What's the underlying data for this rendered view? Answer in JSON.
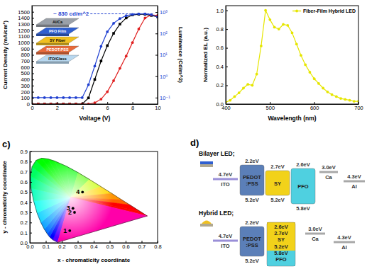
{
  "chart_data": [
    {
      "type": "line",
      "x_label": "Voltage (V)",
      "y_label": "Current Density (mA/cm²)",
      "y2_label": "Luminance (Cd/m^2)",
      "x": [
        0,
        0.5,
        1,
        1.5,
        2,
        2.5,
        3,
        3.5,
        4,
        4.5,
        5,
        5.5,
        6,
        6.5,
        7,
        7.5,
        8,
        8.5,
        9,
        9.5,
        10
      ],
      "xlim": [
        0,
        10
      ],
      "xticks": [
        0,
        2,
        4,
        6,
        8,
        10
      ],
      "ylim": [
        0,
        1600
      ],
      "yticks": [
        0,
        100,
        200,
        300,
        400,
        500,
        600,
        700,
        800,
        900,
        1000,
        1100,
        1200,
        1300,
        1400,
        1500
      ],
      "y2lim": [
        0.05,
        2000
      ],
      "y2ticks": [
        {
          "value": 0.1,
          "label": "10⁻¹"
        },
        {
          "value": 1,
          "label": "10⁰"
        },
        {
          "value": 10,
          "label": "10¹"
        },
        {
          "value": 100,
          "label": "10²"
        },
        {
          "value": 1000,
          "label": "10³"
        }
      ],
      "log": "y2",
      "series": [
        {
          "color": "#000000",
          "marker": "square",
          "line_style": "solid",
          "values": [
            0,
            0,
            0,
            0,
            0,
            0,
            0,
            0,
            0,
            100,
            400,
            700,
            950,
            1150,
            1300,
            1400,
            1450,
            1460,
            1460,
            1440,
            1420
          ]
        },
        {
          "color": "#e02020",
          "marker": "circle",
          "line_style": "solid",
          "values": [
            0,
            0,
            0,
            0,
            0,
            0,
            0,
            0,
            0,
            0,
            20,
            80,
            200,
            380,
            580,
            780,
            1000,
            1220,
            1400,
            1450,
            1440
          ]
        },
        {
          "color": "#1f3fd0",
          "marker": "circle",
          "line_style": "solid",
          "axis": "y2",
          "values": [
            0.1,
            0.1,
            0.1,
            0.1,
            0.1,
            0.1,
            0.1,
            0.1,
            0.1,
            0.4,
            3,
            25,
            120,
            300,
            500,
            680,
            780,
            830,
            830,
            760,
            600
          ]
        }
      ],
      "annotations": [
        {
          "text": "~ 830 cd/m^2",
          "y2": 830
        }
      ],
      "inset": {
        "layers": [
          "Al/Ca",
          "PFO Film",
          "SY Fiber",
          "PEDOT:PSS",
          "ITO/Glass"
        ]
      }
    },
    {
      "type": "line",
      "x_label": "Wavelength (nm)",
      "y_label": "Normalized EL (a.u.)",
      "x": [
        400,
        410,
        420,
        430,
        440,
        450,
        460,
        470,
        480,
        490,
        500,
        510,
        520,
        530,
        540,
        550,
        560,
        570,
        580,
        590,
        600,
        610,
        620,
        630,
        640,
        650,
        660,
        670,
        680,
        690,
        700
      ],
      "xlim": [
        400,
        700
      ],
      "xticks": [
        400,
        500,
        600,
        700
      ],
      "ylim": [
        0,
        1.05
      ],
      "yticks": [
        {
          "value": 0,
          "label": "0.0"
        },
        0.2,
        0.4,
        0.6,
        0.8,
        {
          "value": 1,
          "label": "1.0"
        }
      ],
      "legend": "upper right",
      "series": [
        {
          "name": "Fiber-Film Hybrid LED",
          "color": "#e6e600",
          "marker": "circle",
          "line_style": "solid",
          "values": [
            0.02,
            0.04,
            0.08,
            0.12,
            0.17,
            0.21,
            0.2,
            0.32,
            0.62,
            1.0,
            0.9,
            0.82,
            0.8,
            0.85,
            0.84,
            0.76,
            0.64,
            0.52,
            0.42,
            0.34,
            0.27,
            0.22,
            0.17,
            0.13,
            0.1,
            0.08,
            0.06,
            0.05,
            0.04,
            0.03,
            0.03
          ]
        }
      ]
    },
    {
      "type": "scatter",
      "title": "c)",
      "x_label": "x - chromaticity coordinate",
      "y_label": "y - chromaticity coordinate",
      "x": [
        0.25,
        0.28,
        0.27,
        0.33
      ],
      "xlim": [
        0,
        0.8
      ],
      "xticks": [
        {
          "value": 0,
          "label": "0.0"
        },
        0.1,
        0.2,
        0.3,
        0.4,
        0.5,
        0.6,
        0.7,
        0.8
      ],
      "ylim": [
        0,
        0.9
      ],
      "yticks": [
        {
          "value": 0,
          "label": "0.0"
        },
        0.1,
        0.2,
        0.3,
        0.4,
        0.5,
        0.6,
        0.7,
        0.8,
        0.9
      ],
      "series": [
        {
          "color": "#000000",
          "marker": "circle",
          "values": [
            0.12,
            0.3,
            0.34,
            0.5
          ]
        }
      ],
      "point_labels": [
        "1",
        "2",
        "3",
        "4"
      ],
      "locus": {
        "x": [
          0.174,
          0.144,
          0.124,
          0.11,
          0.091,
          0.069,
          0.045,
          0.024,
          0.008,
          0.004,
          0.014,
          0.039,
          0.074,
          0.114,
          0.155,
          0.23,
          0.302,
          0.373,
          0.444,
          0.513,
          0.575,
          0.627,
          0.692,
          0.719,
          0.735
        ],
        "y": [
          0.005,
          0.03,
          0.058,
          0.087,
          0.133,
          0.201,
          0.295,
          0.413,
          0.538,
          0.655,
          0.75,
          0.812,
          0.834,
          0.826,
          0.806,
          0.754,
          0.692,
          0.625,
          0.555,
          0.487,
          0.424,
          0.373,
          0.308,
          0.281,
          0.265
        ]
      }
    }
  ],
  "diagram": {
    "label": "d)",
    "rows": [
      {
        "title": "Bilayer LED;",
        "items": [
          {
            "name": "ITO",
            "level": "4.7eV"
          },
          {
            "name": [
              "PEDOT",
              ":PSS"
            ],
            "top": "2.2eV",
            "bottom": "5.2eV"
          },
          {
            "name": [
              "SY"
            ],
            "top": "2.7eV",
            "bottom": "5.2eV"
          },
          {
            "name": [
              "PFO"
            ],
            "top": "2.6eV",
            "bottom": "5.8eV"
          },
          {
            "name": "Ca",
            "level": "3.0eV"
          },
          {
            "name": "Al",
            "level": "4.3eV"
          }
        ]
      },
      {
        "title": "Hybrid LED;",
        "items": [
          {
            "name": "ITO",
            "level": "4.7eV"
          },
          {
            "name": [
              "PEDOT",
              ":PSS"
            ],
            "top": "2.2eV",
            "bottom": "5.2eV"
          },
          {
            "stack": [
              "2.6eV",
              "2.7eV",
              "SY",
              "5.2eV",
              "5.8eV",
              "PFO"
            ]
          },
          {
            "name": "Ca",
            "level": "3.0eV"
          },
          {
            "name": "Al",
            "level": "4.3eV"
          }
        ]
      }
    ]
  }
}
